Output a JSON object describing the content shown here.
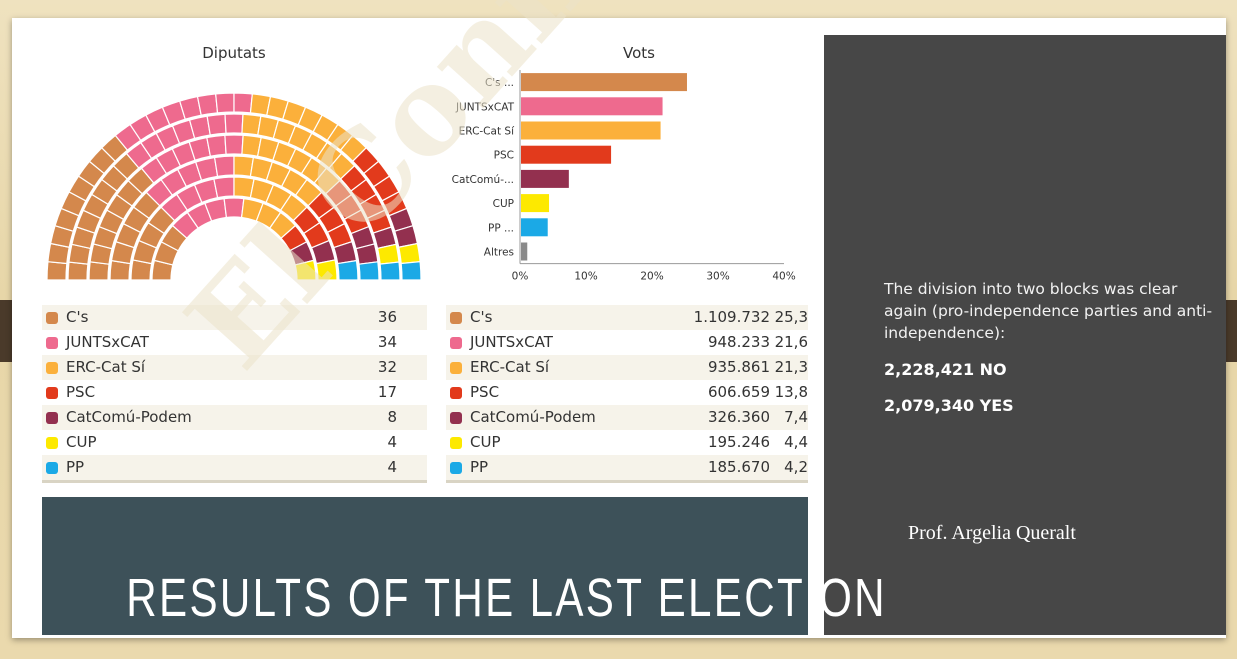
{
  "parties": [
    {
      "name": "C's",
      "color": "#d4884c"
    },
    {
      "name": "JUNTSxCAT",
      "color": "#ee6a8e"
    },
    {
      "name": "ERC-Cat Sí",
      "color": "#fbb03b"
    },
    {
      "name": "PSC",
      "color": "#e23a1c"
    },
    {
      "name": "CatComú-Podem",
      "color": "#93304f"
    },
    {
      "name": "CUP",
      "color": "#fde900"
    },
    {
      "name": "PP",
      "color": "#1ba9e6"
    }
  ],
  "seats_table": [
    {
      "name": "C's",
      "seats": "36"
    },
    {
      "name": "JUNTSxCAT",
      "seats": "34"
    },
    {
      "name": "ERC-Cat Sí",
      "seats": "32"
    },
    {
      "name": "PSC",
      "seats": "17"
    },
    {
      "name": "CatComú-Podem",
      "seats": "8"
    },
    {
      "name": "CUP",
      "seats": "4"
    },
    {
      "name": "PP",
      "seats": "4"
    }
  ],
  "votes_table": [
    {
      "name": "C's",
      "votes": "1.109.732",
      "pct": "25,3"
    },
    {
      "name": "JUNTSxCAT",
      "votes": "948.233",
      "pct": "21,6"
    },
    {
      "name": "ERC-Cat Sí",
      "votes": "935.861",
      "pct": "21,3"
    },
    {
      "name": "PSC",
      "votes": "606.659",
      "pct": "13,8"
    },
    {
      "name": "CatComú-Podem",
      "votes": "326.360",
      "pct": "7,4"
    },
    {
      "name": "CUP",
      "votes": "195.246",
      "pct": "4,4"
    },
    {
      "name": "PP",
      "votes": "185.670",
      "pct": "4,2"
    }
  ],
  "chart_data": [
    {
      "type": "parliament",
      "title": "Diputats",
      "categories": [
        "C's",
        "JUNTSxCAT",
        "ERC-Cat Sí",
        "PSC",
        "CatComú-Podem",
        "CUP",
        "PP"
      ],
      "values": [
        36,
        34,
        32,
        17,
        8,
        4,
        4
      ],
      "total": 135
    },
    {
      "type": "bar",
      "orientation": "horizontal",
      "title": "Vots",
      "categories": [
        "C's ...",
        "JUNTSxCAT",
        "ERC-Cat Sí",
        "PSC",
        "CatComú-...",
        "CUP",
        "PP ...",
        "Altres"
      ],
      "values": [
        25.3,
        21.6,
        21.3,
        13.8,
        7.4,
        4.4,
        4.2,
        1.1
      ],
      "colors": [
        "#d4884c",
        "#ee6a8e",
        "#fbb03b",
        "#e23a1c",
        "#93304f",
        "#fde900",
        "#1ba9e6",
        "#8a8a8a"
      ],
      "xlim": [
        0,
        40
      ],
      "xticks": [
        "0%",
        "10%",
        "20%",
        "30%",
        "40%"
      ]
    }
  ],
  "banner": {
    "title": "RESULTS OF THE LAST ELECTION"
  },
  "panel": {
    "description": "The division into two blocks was clear again (pro-independence parties and anti-independence):",
    "no_line": "2,228,421 NO",
    "yes_line": "2,079,340 YES",
    "author": "Prof. Argelia Queralt"
  },
  "watermark": "El Confidencial"
}
